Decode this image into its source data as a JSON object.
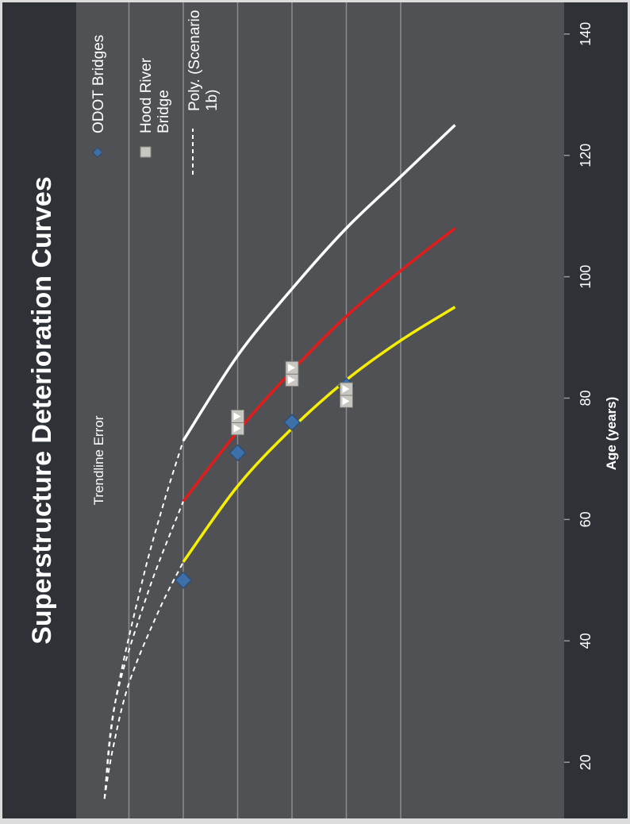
{
  "chart_data": {
    "type": "scatter",
    "title": "Superstructure Deterioration Curves",
    "xlabel": "Age (years)",
    "ylabel": "",
    "xlim": [
      13,
      141
    ],
    "ylim": [
      3.7,
      9.3
    ],
    "orientation": "rotated 90° clockwise (age axis runs along the right edge)",
    "x_ticks": [
      20,
      40,
      60,
      80,
      100,
      120,
      140
    ],
    "y_gridlines": [
      4,
      5,
      6,
      7,
      8,
      9
    ],
    "grid": true,
    "legend_position": "top",
    "annotation": "Trendline Error",
    "legend": {
      "odot": "ODOT Bridges",
      "hood_line1": "Hood River",
      "hood_line2": "Bridge",
      "poly_line1": "Poly. (Scenario",
      "poly_line2": "1b)"
    },
    "colors": {
      "background": "#4f5154",
      "band": "#2e3136",
      "grid": "#8a8c8f",
      "white_curve": "#ffffff",
      "red_curve": "#e21b1b",
      "yellow_curve": "#f6f000",
      "odot_marker": "#3d6fa8",
      "hood_marker": "#c8c6c0"
    },
    "series": [
      {
        "name": "ODOT Bridges",
        "marker": "diamond",
        "points": [
          [
            50,
            8.0
          ],
          [
            71,
            7.0
          ],
          [
            76,
            6.0
          ],
          [
            82,
            5.0
          ]
        ]
      },
      {
        "name": "Hood River Bridge",
        "marker": "square",
        "points": [
          [
            75,
            7.0
          ],
          [
            77,
            7.0
          ],
          [
            83,
            6.0
          ],
          [
            85,
            6.0
          ],
          [
            79.5,
            5.0
          ],
          [
            81.5,
            5.0
          ]
        ]
      }
    ],
    "curves": [
      {
        "color": "white",
        "solid_points": [
          [
            73,
            8.0
          ],
          [
            87,
            7.0
          ],
          [
            98,
            6.0
          ],
          [
            108,
            5.0
          ],
          [
            116.5,
            4.0
          ],
          [
            125,
            3.0
          ]
        ],
        "dashed_points": [
          [
            14,
            9.45
          ],
          [
            30,
            9.25
          ],
          [
            50,
            8.75
          ],
          [
            63,
            8.35
          ],
          [
            73,
            8.0
          ]
        ]
      },
      {
        "color": "red",
        "solid_points": [
          [
            63,
            8.0
          ],
          [
            74.5,
            7.0
          ],
          [
            84.5,
            6.0
          ],
          [
            93.5,
            5.0
          ],
          [
            101,
            4.0
          ],
          [
            108,
            3.0
          ]
        ],
        "dashed_points": [
          [
            14,
            9.45
          ],
          [
            30,
            9.25
          ],
          [
            48,
            8.65
          ],
          [
            63,
            8.0
          ]
        ]
      },
      {
        "color": "yellow",
        "solid_points": [
          [
            53,
            8.0
          ],
          [
            65.5,
            7.0
          ],
          [
            75,
            6.0
          ],
          [
            83,
            5.0
          ],
          [
            89.5,
            4.0
          ],
          [
            95,
            3.0
          ]
        ],
        "dashed_points": [
          [
            14,
            9.45
          ],
          [
            22,
            9.3
          ],
          [
            33,
            9.0
          ],
          [
            45,
            8.45
          ],
          [
            53,
            8.0
          ]
        ]
      }
    ]
  }
}
